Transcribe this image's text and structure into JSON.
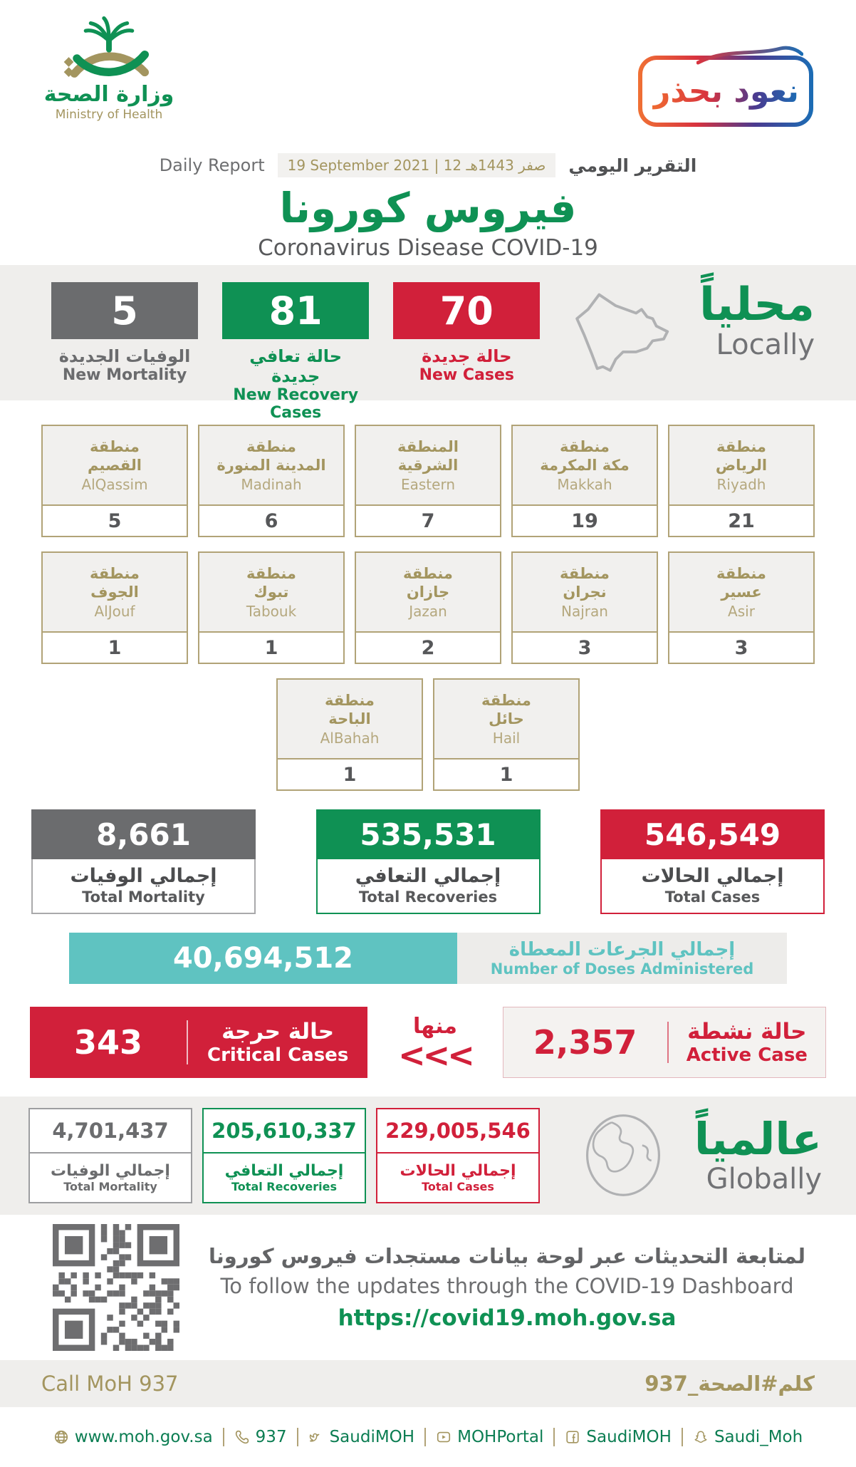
{
  "colors": {
    "green": "#0f9154",
    "red": "#d1203a",
    "gray": "#6b6c6e",
    "dark": "#4f5052",
    "gold": "#a3955f",
    "goldborder": "#b1a377",
    "teal": "#5fc3c1",
    "band": "#efeeec"
  },
  "header": {
    "logo_ar": "وزارة الصحة",
    "logo_en": "Ministry of Health",
    "badge": "نعود بحذر",
    "daily_report_en": "Daily Report",
    "daily_report_ar": "التقرير اليومي",
    "date": "19 September 2021 | 12 صفر 1443هـ",
    "title_ar": "فيروس كورونا",
    "title_en": "Coronavirus Disease COVID-19"
  },
  "locally": {
    "heading_ar": "محلياً",
    "heading_en": "Locally",
    "stats": [
      {
        "value": "5",
        "label_ar": "الوفيات الجديدة",
        "label_en": "New Mortality"
      },
      {
        "value": "81",
        "label_ar": "حالة تعافي جديدة",
        "label_en": "New Recovery Cases"
      },
      {
        "value": "70",
        "label_ar": "حالة جديدة",
        "label_en": "New Cases"
      }
    ]
  },
  "regions": {
    "row1": [
      {
        "ar1": "منطقة",
        "ar2": "القصيم",
        "en": "AlQassim",
        "value": "5"
      },
      {
        "ar1": "منطقة",
        "ar2": "المدينة المنورة",
        "en": "Madinah",
        "value": "6"
      },
      {
        "ar1": "المنطقة",
        "ar2": "الشرقية",
        "en": "Eastern",
        "value": "7"
      },
      {
        "ar1": "منطقة",
        "ar2": "مكة المكرمة",
        "en": "Makkah",
        "value": "19"
      },
      {
        "ar1": "منطقة",
        "ar2": "الرياض",
        "en": "Riyadh",
        "value": "21"
      }
    ],
    "row2": [
      {
        "ar1": "منطقة",
        "ar2": "الجوف",
        "en": "AlJouf",
        "value": "1"
      },
      {
        "ar1": "منطقة",
        "ar2": "تبوك",
        "en": "Tabouk",
        "value": "1"
      },
      {
        "ar1": "منطقة",
        "ar2": "جازان",
        "en": "Jazan",
        "value": "2"
      },
      {
        "ar1": "منطقة",
        "ar2": "نجران",
        "en": "Najran",
        "value": "3"
      },
      {
        "ar1": "منطقة",
        "ar2": "عسير",
        "en": "Asir",
        "value": "3"
      }
    ],
    "row3": [
      {
        "ar1": "منطقة",
        "ar2": "الباحة",
        "en": "AlBahah",
        "value": "1"
      },
      {
        "ar1": "منطقة",
        "ar2": "حائل",
        "en": "Hail",
        "value": "1"
      }
    ]
  },
  "totals": [
    {
      "value": "8,661",
      "label_ar": "إجمالي الوفيات",
      "label_en": "Total Mortality"
    },
    {
      "value": "535,531",
      "label_ar": "إجمالي التعافي",
      "label_en": "Total Recoveries"
    },
    {
      "value": "546,549",
      "label_ar": "إجمالي الحالات",
      "label_en": "Total Cases"
    }
  ],
  "doses": {
    "value": "40,694,512",
    "label_ar": "إجمالي الجرعات المعطاة",
    "label_en": "Number of Doses Administered"
  },
  "critical": {
    "value": "343",
    "label_ar": "حالة حرجة",
    "label_en": "Critical Cases"
  },
  "of_which": {
    "word": "منها",
    "chevrons": "<<<"
  },
  "active": {
    "value": "2,357",
    "label_ar": "حالة نشطة",
    "label_en": "Active Case"
  },
  "globally": {
    "heading_ar": "عالمياً",
    "heading_en": "Globally",
    "stats": [
      {
        "value": "4,701,437",
        "label_ar": "إجمالي الوفيات",
        "label_en": "Total Mortality"
      },
      {
        "value": "205,610,337",
        "label_ar": "إجمالي التعافي",
        "label_en": "Total Recoveries"
      },
      {
        "value": "229,005,546",
        "label_ar": "إجمالي الحالات",
        "label_en": "Total Cases"
      }
    ]
  },
  "dashboard": {
    "text_ar": "لمتابعة التحديثات عبر لوحة بيانات مستجدات فيروس كورونا",
    "text_en": "To follow the updates through the COVID-19 Dashboard",
    "url": "https://covid19.moh.gov.sa"
  },
  "call": {
    "en": "Call MoH 937",
    "ar": "كلم#الصحة_937"
  },
  "footer": {
    "links": [
      {
        "icon": "globe-icon",
        "label": "www.moh.gov.sa"
      },
      {
        "icon": "phone-icon",
        "label": "937"
      },
      {
        "icon": "twitter-icon",
        "label": "SaudiMOH"
      },
      {
        "icon": "youtube-icon",
        "label": "MOHPortal"
      },
      {
        "icon": "facebook-icon",
        "label": "SaudiMOH"
      },
      {
        "icon": "snapchat-icon",
        "label": "Saudi_Moh"
      }
    ]
  }
}
